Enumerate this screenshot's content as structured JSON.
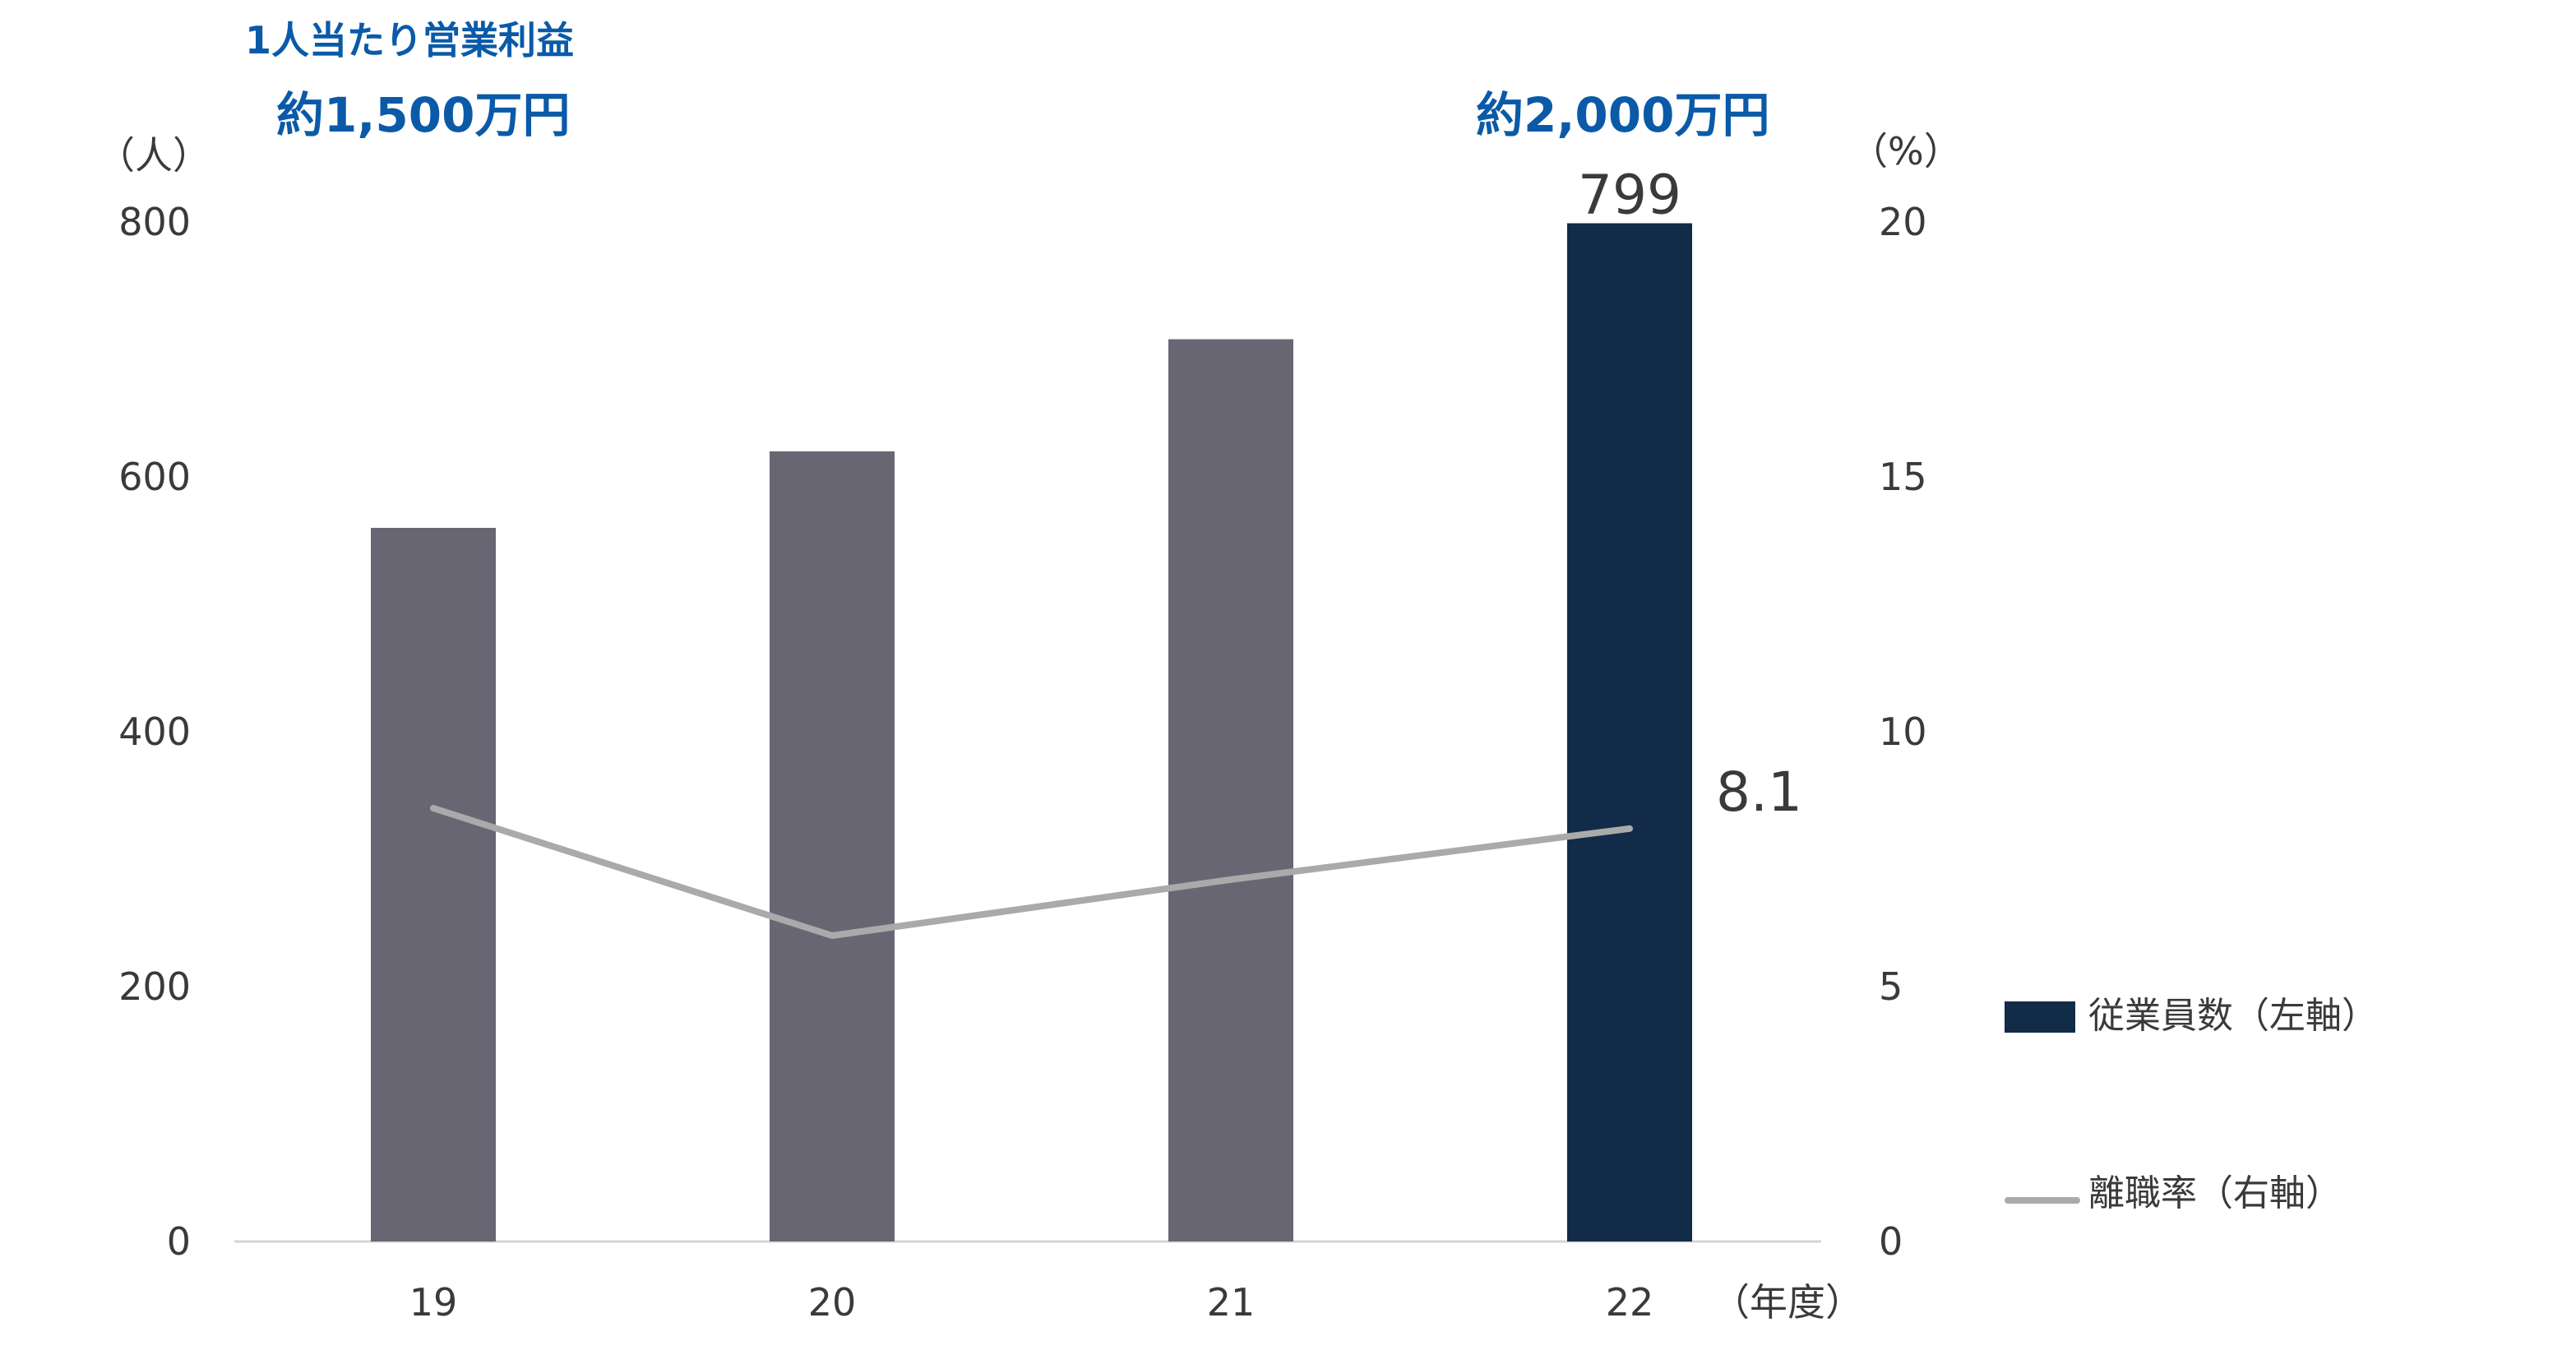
{
  "callout": {
    "title": "1人当たり営業利益",
    "left_value": "約1,500万円",
    "right_value": "約2,000万円"
  },
  "units": {
    "left": "（人）",
    "right": "（%）",
    "x": "（年度）"
  },
  "legend": {
    "bar_label": "従業員数（左軸）",
    "line_label": "離職率（右軸）"
  },
  "colors": {
    "bar": "#696674",
    "bar_highlight": "#112b48",
    "line": "#aaaaaa",
    "axis_text": "#3a3a3a",
    "callout": "#0a5aa8",
    "axis_line": "#d4d4d4"
  },
  "chart_data": {
    "type": "bar",
    "categories": [
      "19",
      "20",
      "21",
      "22"
    ],
    "series": [
      {
        "name": "従業員数（左軸）",
        "type": "bar",
        "axis": "left",
        "values": [
          560,
          620,
          708,
          799
        ]
      },
      {
        "name": "離職率（右軸）",
        "type": "line",
        "axis": "right",
        "values": [
          8.5,
          6.0,
          7.1,
          8.1
        ]
      }
    ],
    "highlight_index": 3,
    "data_labels": [
      {
        "series": 0,
        "index": 3,
        "text": "799"
      },
      {
        "series": 1,
        "index": 3,
        "text": "8.1"
      }
    ],
    "y_left": {
      "min": 0,
      "max": 800,
      "ticks": [
        "0",
        "200",
        "400",
        "600",
        "800"
      ]
    },
    "y_right": {
      "min": 0,
      "max": 20,
      "ticks": [
        "0",
        "5",
        "10",
        "15",
        "20"
      ]
    },
    "grid": false,
    "legend_position": "right"
  }
}
